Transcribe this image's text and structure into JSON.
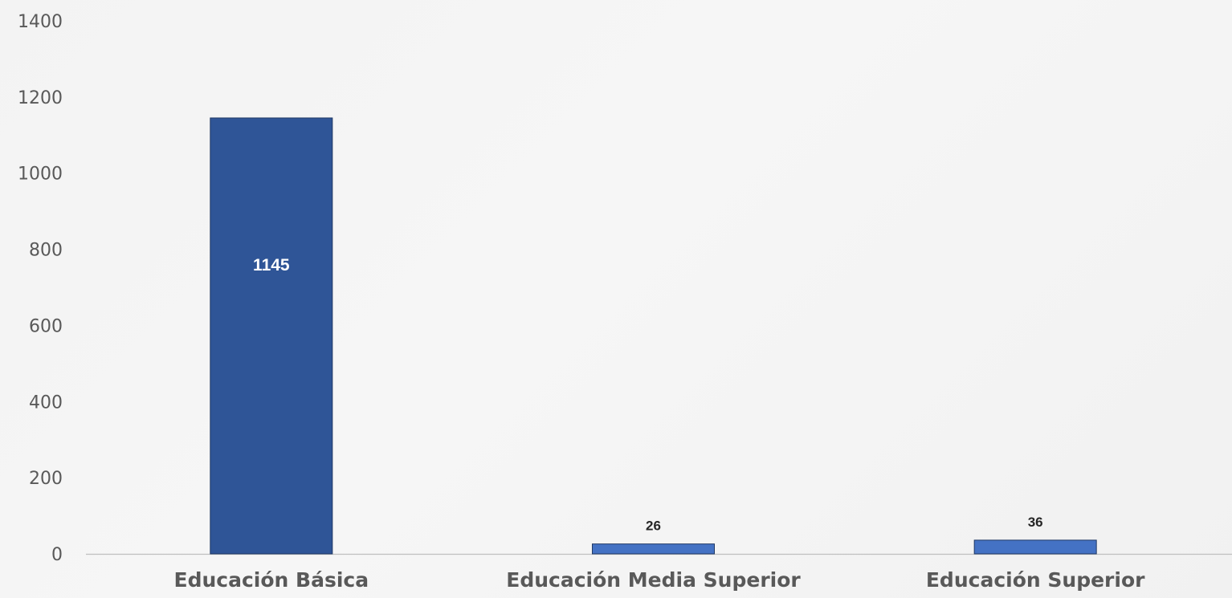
{
  "chart_data": {
    "type": "bar",
    "categories": [
      "Educación Básica",
      "Educación Media Superior",
      "Educación Superior"
    ],
    "values": [
      1145,
      26,
      36
    ],
    "data_labels": [
      "1145",
      "26",
      "36"
    ],
    "title": "",
    "xlabel": "",
    "ylabel": "",
    "ylim": [
      0,
      1400
    ],
    "yticks": [
      0,
      200,
      400,
      600,
      800,
      1000,
      1200,
      1400
    ],
    "ytick_labels": [
      "0",
      "200",
      "400",
      "600",
      "800",
      "1000",
      "1200",
      "1400"
    ],
    "grid": false,
    "legend": "none",
    "colors": {
      "bars": [
        "#2f5597",
        "#4472c4",
        "#4472c4"
      ],
      "bar_outline": "#1f3864",
      "baseline": "#bfbfbf",
      "tick_text": "#595959",
      "category_text": "#595959",
      "label_inside": "#ffffff",
      "label_outside": "#262626"
    }
  }
}
